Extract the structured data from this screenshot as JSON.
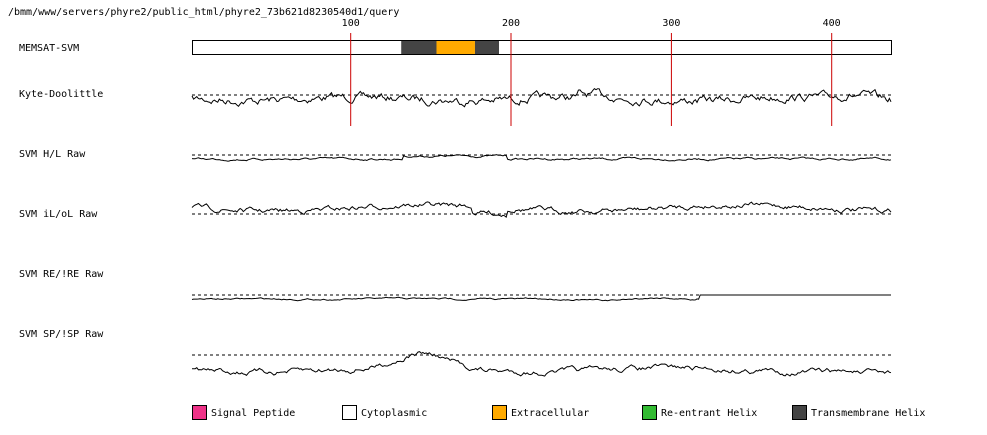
{
  "header": {
    "path": "/bmm/www/servers/phyre2/public_html/phyre2_73b621d8230540d1/query"
  },
  "sequence": {
    "length": 437,
    "ruler_ticks": [
      100,
      200,
      300,
      400
    ]
  },
  "tracks": [
    {
      "id": "memsat",
      "label": "MEMSAT-SVM"
    },
    {
      "id": "kd",
      "label": "Kyte-Doolittle"
    },
    {
      "id": "hl",
      "label": "SVM H/L Raw"
    },
    {
      "id": "iloL",
      "label": "SVM iL/oL Raw"
    },
    {
      "id": "reire",
      "label": "SVM RE/!RE Raw"
    },
    {
      "id": "spisp",
      "label": "SVM SP/!SP Raw"
    }
  ],
  "memsat_segments": [
    {
      "type": "cytoplasmic",
      "start": 1,
      "end": 131
    },
    {
      "type": "transmembrane",
      "start": 132,
      "end": 153
    },
    {
      "type": "extracellular",
      "start": 154,
      "end": 177
    },
    {
      "type": "transmembrane",
      "start": 178,
      "end": 192
    },
    {
      "type": "cytoplasmic",
      "start": 193,
      "end": 437
    }
  ],
  "legend": [
    {
      "key": "signal",
      "label": "Signal Peptide",
      "color": "#ee3388"
    },
    {
      "key": "cytoplasmic",
      "label": "Cytoplasmic",
      "color": "#ffffff"
    },
    {
      "key": "extracellular",
      "label": "Extracellular",
      "color": "#ffaa00"
    },
    {
      "key": "reentrant",
      "label": "Re-entrant Helix",
      "color": "#33bb33"
    },
    {
      "key": "transmembrane",
      "label": "Transmembrane Helix",
      "color": "#444444"
    }
  ],
  "colors": {
    "ruler": "#cc0000",
    "trace": "#000000",
    "baseline": "#000000"
  }
}
